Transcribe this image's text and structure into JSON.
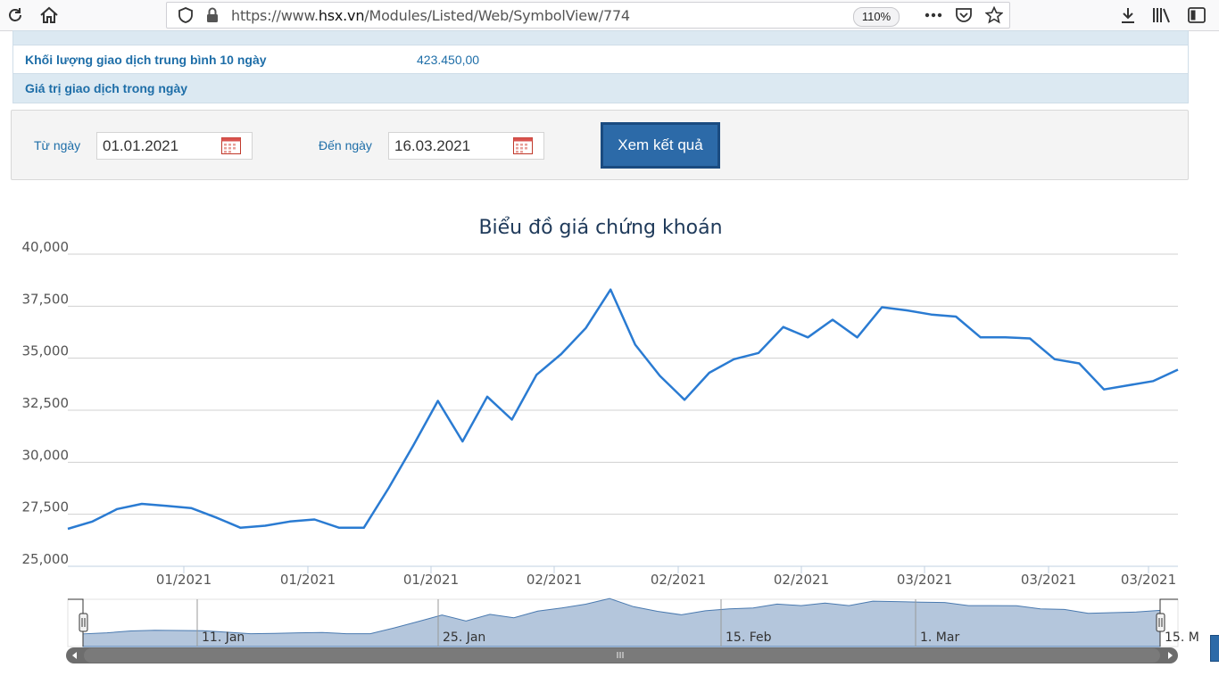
{
  "browser": {
    "url_prefix": "https://www.",
    "url_domain": "hsx.vn",
    "url_path": "/Modules/Listed/Web/SymbolView/774",
    "zoom": "110%"
  },
  "info_table": {
    "rows": [
      {
        "label": "Khối lượng giao dịch trung bình 10 ngày",
        "value": "423.450,00"
      },
      {
        "label": "Giá trị giao dịch trong ngày",
        "value": ""
      }
    ]
  },
  "filter": {
    "from_label": "Từ ngày",
    "from_value": "01.01.2021",
    "to_label": "Đến ngày",
    "to_value": "16.03.2021",
    "submit_label": "Xem kết quả"
  },
  "colors": {
    "line": "#2a7bd2",
    "navigator_fill": "#b4c6dc",
    "accent": "#2c6aa8"
  },
  "chart_data": {
    "type": "line",
    "title": "Biểu đồ giá chứng khoán",
    "ylim": [
      25000,
      40000
    ],
    "yticks": [
      "25,000",
      "27,500",
      "30,000",
      "32,500",
      "35,000",
      "37,500",
      "40,000"
    ],
    "xtick_labels": [
      "01/2021",
      "01/2021",
      "01/2021",
      "02/2021",
      "02/2021",
      "02/2021",
      "03/2021",
      "03/2021",
      "03/2021"
    ],
    "navigator_labels": [
      "11. Jan",
      "25. Jan",
      "15. Feb",
      "1. Mar",
      "15. M"
    ],
    "grid": true,
    "series": [
      {
        "values": [
          26800,
          27150,
          27750,
          28000,
          27900,
          27800,
          27350,
          26850,
          26950,
          27150,
          27250,
          26850,
          26850,
          28750,
          30800,
          32950,
          31000,
          33150,
          32050,
          34200,
          35200,
          36450,
          38300,
          35650,
          34150,
          33000,
          34300,
          34950,
          35250,
          36500,
          36000,
          36850,
          36000,
          37450,
          37300,
          37100,
          37000,
          36000,
          36000,
          35950,
          34950,
          34750,
          33500,
          33700,
          33900,
          34450
        ]
      }
    ]
  }
}
